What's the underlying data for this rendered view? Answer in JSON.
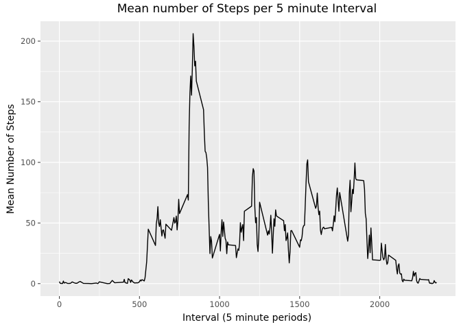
{
  "chart_data": {
    "type": "line",
    "title": "Mean number of Steps per 5 minute Interval",
    "xlabel": "Interval (5 minute periods)",
    "ylabel": "Mean Number of Steps",
    "xlim": [
      -118,
      2473
    ],
    "ylim": [
      -10.3,
      216.4
    ],
    "xticks": [
      0,
      500,
      1000,
      1500,
      2000
    ],
    "yticks": [
      0,
      50,
      100,
      150,
      200
    ],
    "grid": true,
    "background": "#ebebeb",
    "gridline_color": "#ffffff",
    "line_color": "#000000",
    "series": [
      {
        "x": [
          0,
          5,
          10,
          15,
          20,
          25,
          30,
          40,
          50,
          60,
          70,
          80,
          90,
          100,
          110,
          115,
          120,
          130,
          150,
          180,
          200,
          230,
          240,
          250,
          300,
          315,
          330,
          345,
          400,
          405,
          410,
          420,
          425,
          430,
          440,
          445,
          450,
          460,
          470,
          480,
          490,
          500,
          505,
          510,
          515,
          520,
          530,
          535,
          545,
          555,
          600,
          605,
          610,
          615,
          620,
          625,
          630,
          640,
          645,
          650,
          660,
          665,
          700,
          710,
          715,
          720,
          725,
          730,
          735,
          740,
          745,
          750,
          800,
          805,
          810,
          815,
          820,
          825,
          830,
          835,
          840,
          845,
          850,
          855,
          900,
          905,
          910,
          915,
          920,
          925,
          930,
          935,
          940,
          945,
          950,
          955,
          1000,
          1005,
          1010,
          1015,
          1020,
          1025,
          1030,
          1035,
          1040,
          1045,
          1050,
          1055,
          1100,
          1105,
          1110,
          1115,
          1120,
          1125,
          1130,
          1135,
          1140,
          1145,
          1150,
          1155,
          1200,
          1205,
          1210,
          1215,
          1220,
          1225,
          1230,
          1235,
          1240,
          1245,
          1250,
          1300,
          1305,
          1310,
          1315,
          1320,
          1325,
          1330,
          1335,
          1340,
          1345,
          1350,
          1355,
          1400,
          1405,
          1410,
          1415,
          1420,
          1425,
          1430,
          1435,
          1440,
          1445,
          1450,
          1500,
          1505,
          1510,
          1515,
          1520,
          1525,
          1530,
          1535,
          1540,
          1545,
          1550,
          1555,
          1600,
          1605,
          1610,
          1615,
          1620,
          1625,
          1630,
          1635,
          1640,
          1645,
          1650,
          1655,
          1700,
          1705,
          1710,
          1715,
          1720,
          1725,
          1730,
          1735,
          1740,
          1745,
          1750,
          1800,
          1805,
          1810,
          1815,
          1820,
          1825,
          1830,
          1835,
          1840,
          1845,
          1850,
          1855,
          1900,
          1905,
          1910,
          1915,
          1920,
          1925,
          1930,
          1935,
          1940,
          1945,
          1950,
          1955,
          2000,
          2005,
          2010,
          2015,
          2020,
          2025,
          2030,
          2035,
          2040,
          2045,
          2050,
          2055,
          2100,
          2105,
          2110,
          2115,
          2120,
          2125,
          2130,
          2135,
          2140,
          2145,
          2150,
          2155,
          2200,
          2205,
          2210,
          2215,
          2220,
          2225,
          2230,
          2235,
          2240,
          2245,
          2250,
          2255,
          2300,
          2305,
          2310,
          2315,
          2320,
          2325,
          2330,
          2335,
          2340,
          2345,
          2350,
          2355
        ],
        "y": [
          1.7,
          0.3,
          0.1,
          0.2,
          0.1,
          2.1,
          0.5,
          0.9,
          0.2,
          0.1,
          0.3,
          1.4,
          0.8,
          0.3,
          0.3,
          0.7,
          1.2,
          1.8,
          0.2,
          0.1,
          0.0,
          0.5,
          0.0,
          1.5,
          0.0,
          0.1,
          2.6,
          0.7,
          1.2,
          3.5,
          0.8,
          0.4,
          0.2,
          4.1,
          2.9,
          1.0,
          3.0,
          1.3,
          0.5,
          0.7,
          0.6,
          1.5,
          3.0,
          2.2,
          3.2,
          3.0,
          2.2,
          5.0,
          18.1,
          44.9,
          31.5,
          49.3,
          53.8,
          63.5,
          49.9,
          47.1,
          52.7,
          39.3,
          44.0,
          44.2,
          37.4,
          49.0,
          44.0,
          50.8,
          54.5,
          49.9,
          50.9,
          55.7,
          44.3,
          52.3,
          69.5,
          57.8,
          73.4,
          68.9,
          129.4,
          157.5,
          171.2,
          155.4,
          177.3,
          206.2,
          195.9,
          179.6,
          183.4,
          167.0,
          143.5,
          124.0,
          109.1,
          108.1,
          103.7,
          95.9,
          66.2,
          45.2,
          24.8,
          38.8,
          35.0,
          21.1,
          40.6,
          26.9,
          42.4,
          52.7,
          38.9,
          50.8,
          44.3,
          37.4,
          35.5,
          24.7,
          34.3,
          32.0,
          31.4,
          21.4,
          25.2,
          28.6,
          27.4,
          33.4,
          50.2,
          42.4,
          46.0,
          48.7,
          35.5,
          59.7,
          63.9,
          87.9,
          94.8,
          92.8,
          63.4,
          50.2,
          54.5,
          32.4,
          26.5,
          38.0,
          67.1,
          40.0,
          43.5,
          40.9,
          46.2,
          56.4,
          42.8,
          25.1,
          39.9,
          53.5,
          47.3,
          60.8,
          55.8,
          51.9,
          43.6,
          48.7,
          35.5,
          37.5,
          41.8,
          27.5,
          17.1,
          26.1,
          43.6,
          43.8,
          30.0,
          36.1,
          35.5,
          38.8,
          45.9,
          47.8,
          48.1,
          65.3,
          82.9,
          98.7,
          102.1,
          84.0,
          62.1,
          64.1,
          74.7,
          63.2,
          56.9,
          59.8,
          43.9,
          40.5,
          44.5,
          46.0,
          46.6,
          45.2,
          46.4,
          43.5,
          49.0,
          55.9,
          51.0,
          61.2,
          72.7,
          78.9,
          68.9,
          59.7,
          75.1,
          35.0,
          40.5,
          74.7,
          85.3,
          59.3,
          67.8,
          77.7,
          74.2,
          85.3,
          99.5,
          86.6,
          85.6,
          84.9,
          77.8,
          58.0,
          53.4,
          36.3,
          20.7,
          29.0,
          40.0,
          25.5,
          45.9,
          33.6,
          19.6,
          19.2,
          19.4,
          33.3,
          27.0,
          21.5,
          19.6,
          21.3,
          32.3,
          20.2,
          15.9,
          17.2,
          23.5,
          19.2,
          12.5,
          8.0,
          14.7,
          16.3,
          8.7,
          7.8,
          8.1,
          2.6,
          1.5,
          3.7,
          2.8,
          2.3,
          4.7,
          10.1,
          6.2,
          8.4,
          9.1,
          2.5,
          0.7,
          0.4,
          2.2,
          4.2,
          3.5,
          3.0,
          3.3,
          0.6,
          0.2,
          0.5,
          0.0,
          0.2,
          0.5,
          2.5,
          1.1,
          0.5,
          1.1
        ]
      }
    ]
  }
}
